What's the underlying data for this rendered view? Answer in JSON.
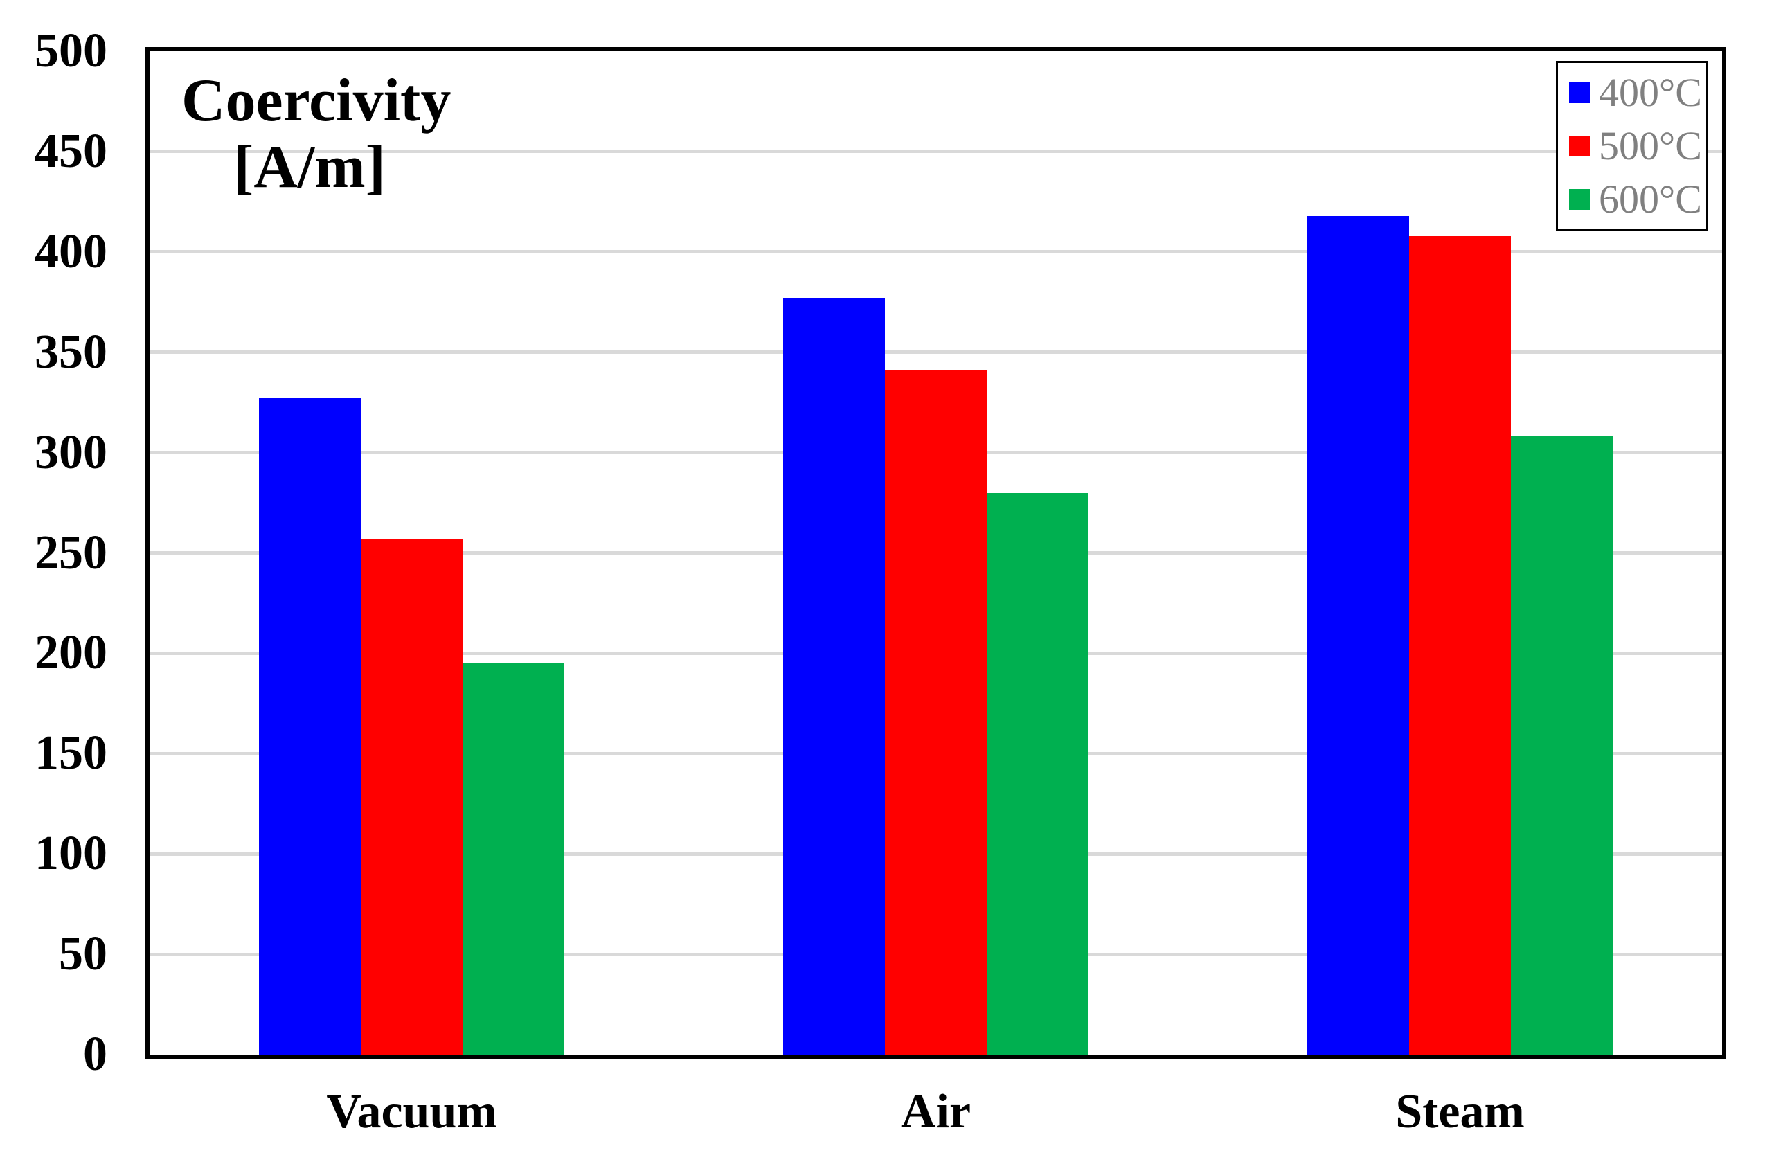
{
  "chart_data": {
    "type": "bar",
    "title_line1": "Coercivity",
    "title_line2": "[A/m]",
    "categories": [
      "Vacuum",
      "Air",
      "Steam"
    ],
    "series": [
      {
        "name": "400°C",
        "color": "#0000FF",
        "values": [
          327,
          377,
          418
        ]
      },
      {
        "name": "500°C",
        "color": "#FF0000",
        "values": [
          257,
          341,
          408
        ]
      },
      {
        "name": "600°C",
        "color": "#00B050",
        "values": [
          195,
          280,
          308
        ]
      }
    ],
    "ylim": [
      0,
      500
    ],
    "yticks": [
      0,
      50,
      100,
      150,
      200,
      250,
      300,
      350,
      400,
      450,
      500
    ],
    "ytick_step": 50,
    "grid": "horizontal",
    "gridline_color": "#D9D9D9",
    "axis_frame_color": "#000000",
    "legend_position": "top-right",
    "legend_text_color": "#808080",
    "tick_label_color": "#000000",
    "bar_group_gap_ratio": 0.417
  }
}
